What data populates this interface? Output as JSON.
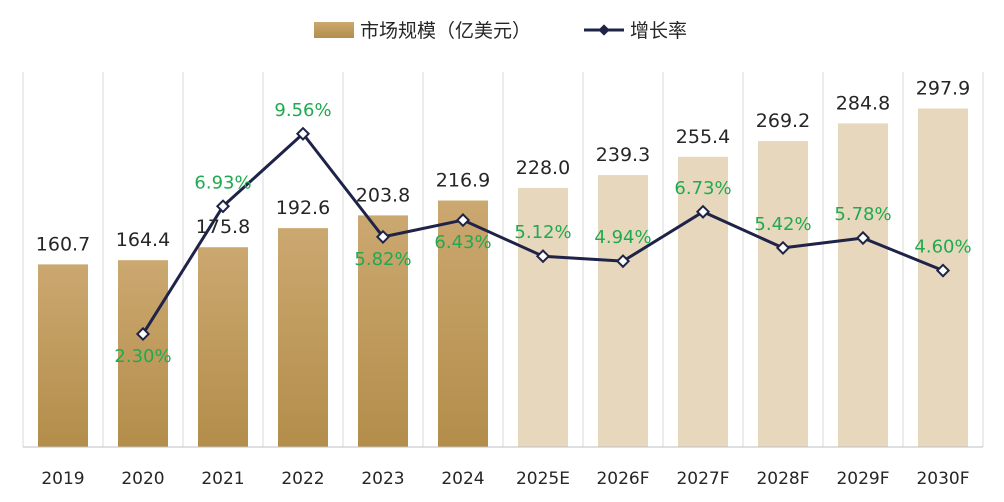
{
  "chart_data": {
    "type": "bar",
    "categories": [
      "2019",
      "2020",
      "2021",
      "2022",
      "2023",
      "2024",
      "2025E",
      "2026F",
      "2027F",
      "2028F",
      "2029F",
      "2030F"
    ],
    "series": [
      {
        "name": "市场规模（亿美元）",
        "kind": "bar",
        "values": [
          160.7,
          164.4,
          175.8,
          192.6,
          203.8,
          216.9,
          228.0,
          239.3,
          255.4,
          269.2,
          284.8,
          297.9
        ],
        "labels": [
          "160.7",
          "164.4",
          "175.8",
          "192.6",
          "203.8",
          "216.9",
          "228.0",
          "239.3",
          "255.4",
          "269.2",
          "284.8",
          "297.9"
        ]
      },
      {
        "name": "增长率",
        "kind": "line",
        "values": [
          null,
          2.3,
          6.93,
          9.56,
          5.82,
          6.43,
          5.12,
          4.94,
          6.73,
          5.42,
          5.78,
          4.6
        ],
        "labels": [
          "",
          "2.30%",
          "6.93%",
          "9.56%",
          "5.82%",
          "6.43%",
          "5.12%",
          "4.94%",
          "6.73%",
          "5.42%",
          "5.78%",
          "4.60%"
        ]
      }
    ],
    "ylim": [
      0,
      330
    ],
    "y2lim": [
      -1.8,
      11.8
    ],
    "grid": "vertical",
    "legend_position": "top-center",
    "colors": {
      "actual_bar_top": "#cba870",
      "actual_bar_bottom": "#b38d4a",
      "forecast_bar": "#e7d8bd",
      "line": "#1e2347",
      "line_label": "#1faa50",
      "grid": "#d9d9d9",
      "axis": "#bfbfbf"
    },
    "actual_count": 6
  }
}
